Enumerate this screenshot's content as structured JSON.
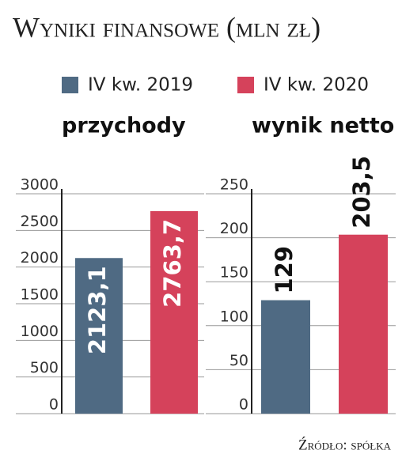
{
  "title": "Wyniki finansowe (mln zł)",
  "source": "Źródło: spółka",
  "chart_data": [
    {
      "type": "bar",
      "title": "przychody",
      "series": [
        {
          "name": "IV kw. 2019",
          "color": "#4f6a83",
          "values": [
            2123.1
          ],
          "value_labels": [
            "2123,1"
          ]
        },
        {
          "name": "IV kw. 2020",
          "color": "#d5425b",
          "values": [
            2763.7
          ],
          "value_labels": [
            "2763,7"
          ]
        }
      ],
      "ylim": [
        0,
        3000
      ],
      "yticks": [
        0,
        500,
        1000,
        1500,
        2000,
        2500,
        3000
      ],
      "grid": true
    },
    {
      "type": "bar",
      "title": "wynik netto",
      "series": [
        {
          "color": "#4f6a83",
          "values": [
            129
          ],
          "value_labels": [
            "129"
          ]
        },
        {
          "color": "#d5425b",
          "values": [
            203.5
          ],
          "value_labels": [
            "203,5"
          ]
        }
      ],
      "ylim": [
        0,
        250
      ],
      "yticks": [
        0,
        50,
        100,
        150,
        200,
        250
      ],
      "grid": true
    }
  ]
}
